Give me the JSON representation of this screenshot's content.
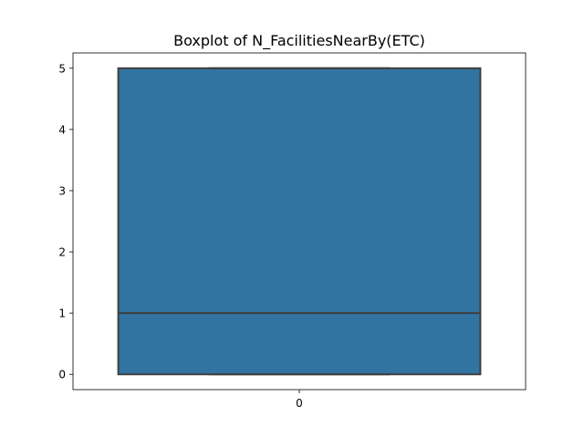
{
  "chart_data": {
    "type": "boxplot",
    "title": "Boxplot of N_FacilitiesNearBy(ETC)",
    "xlabel": "",
    "ylabel": "",
    "categories": [
      "0"
    ],
    "boxes": [
      {
        "category": "0",
        "whisker_low": 0,
        "q1": 0,
        "median": 1,
        "q3": 5,
        "whisker_high": 5
      }
    ],
    "yticks": [
      0,
      1,
      2,
      3,
      4,
      5
    ],
    "ylim": [
      -0.25,
      5.25
    ],
    "grid": false,
    "colors": {
      "box_fill": "#3274a1",
      "box_edge": "#3f3f3f",
      "axes": "#000000"
    }
  }
}
